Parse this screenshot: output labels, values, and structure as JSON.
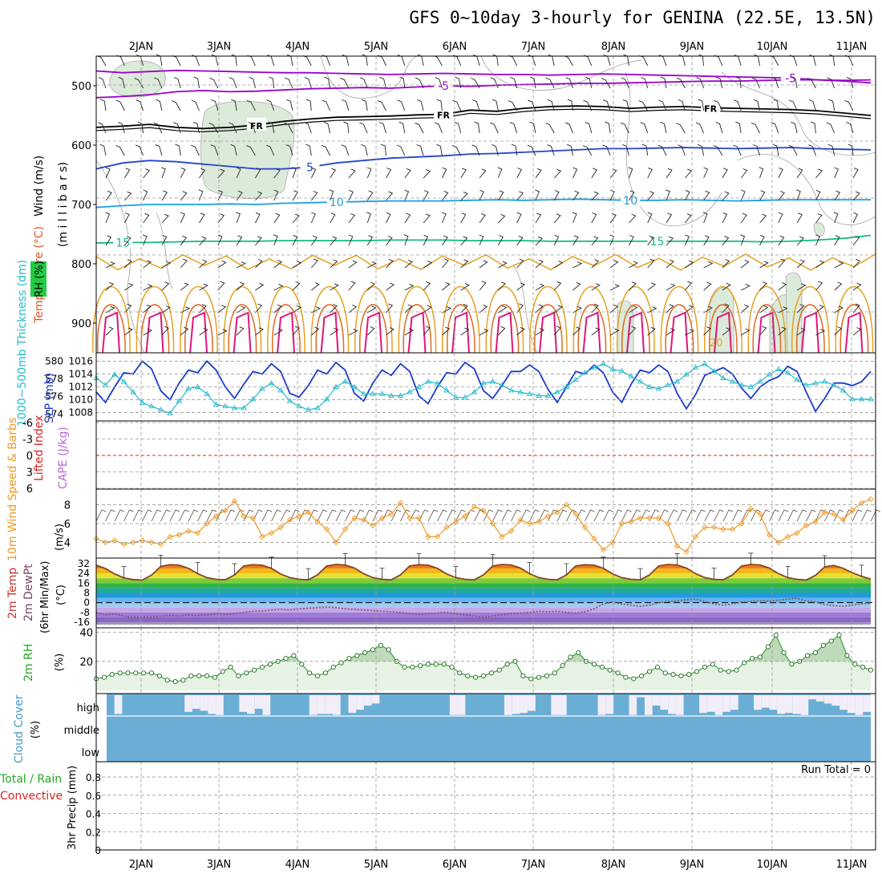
{
  "title": "GFS 0~10day 3-hourly for GENINA (22.5E, 13.5N)",
  "colors": {
    "purple": "#9900cc",
    "blue5": "#2244cc",
    "cyan10": "#1a9ee6",
    "green15": "#11bb88",
    "orange20": "#e8a020",
    "orange25": "#dd6a20",
    "pink30": "#e0157a",
    "rh_fill": "#dcebd9",
    "slp": "#1a3acc",
    "thick": "#22bbcc",
    "wind10m": "#ee9922",
    "temp_line": "#884422",
    "dew_line": "#885566",
    "rh2m": "#33aa33",
    "cloud": "#6aaed6",
    "cloud_gap": "#f2eef8",
    "red": "#dd2222"
  },
  "chart_data": [
    {
      "panel": "upper-air",
      "type": "contour",
      "x_dates": [
        "2JAN",
        "3JAN",
        "4JAN",
        "5JAN",
        "6JAN",
        "7JAN",
        "8JAN",
        "9JAN",
        "10JAN",
        "11JAN"
      ],
      "ylabel_parts": [
        "Wind (m/s)",
        "Temperature (°C)",
        "RH (%)",
        "(m i l l i b a r s)"
      ],
      "yticks": [
        "500",
        "600",
        "700",
        "800",
        "900"
      ],
      "ylim": [
        950,
        450
      ],
      "contours": [
        {
          "label": "-5",
          "level": -5,
          "color": "purple",
          "p": [
            475,
            478,
            476,
            474,
            475,
            476,
            477,
            478,
            478,
            479,
            480,
            481,
            480,
            479,
            480,
            481,
            481,
            482,
            481,
            480,
            481,
            482,
            483,
            484,
            485,
            486,
            487,
            490,
            492,
            495
          ]
        },
        {
          "label": "-5",
          "level": -5,
          "color": "purple",
          "p": [
            520,
            518,
            515,
            510,
            508,
            510,
            509,
            507,
            505,
            504,
            503,
            504,
            502,
            500,
            501,
            499,
            498,
            497,
            496,
            496,
            495,
            494,
            493,
            492,
            492,
            491,
            490,
            490,
            491,
            490
          ]
        },
        {
          "label": "FR",
          "level": 0,
          "color": "black",
          "p": [
            570,
            568,
            565,
            570,
            572,
            570,
            566,
            560,
            556,
            553,
            552,
            551,
            549,
            548,
            541,
            543,
            538,
            535,
            534,
            535,
            538,
            536,
            535,
            537,
            538,
            539,
            540,
            542,
            546,
            550
          ]
        },
        {
          "label": "5",
          "level": 5,
          "color": "blue5",
          "p": [
            640,
            630,
            626,
            628,
            632,
            636,
            640,
            640,
            637,
            630,
            626,
            622,
            620,
            618,
            615,
            614,
            612,
            610,
            608,
            606,
            606,
            605,
            604,
            605,
            606,
            605,
            604,
            606,
            607,
            608
          ]
        },
        {
          "label": "10",
          "level": 10,
          "color": "cyan10",
          "p": [
            705,
            702,
            700,
            700,
            700,
            699,
            700,
            698,
            697,
            696,
            695,
            694,
            694,
            694,
            693,
            692,
            693,
            692,
            691,
            692,
            693,
            693,
            692,
            693,
            694,
            693,
            692,
            692,
            692,
            692
          ]
        },
        {
          "label": "15",
          "level": 15,
          "color": "green15",
          "p": [
            765,
            764,
            764,
            763,
            762,
            762,
            762,
            761,
            761,
            761,
            761,
            760,
            760,
            760,
            761,
            761,
            761,
            762,
            762,
            762,
            762,
            762,
            762,
            762,
            762,
            763,
            762,
            760,
            757,
            752
          ]
        }
      ]
    },
    {
      "panel": "slp-thickness",
      "type": "line",
      "ylabel_left": "1000~500mb Thickness (dm)",
      "ylabel_right": "SLP (mb)",
      "yticks_left": [
        "574",
        "576",
        "578",
        "580"
      ],
      "yticks_right": [
        "1008",
        "1010",
        "1012",
        "1014",
        "1016"
      ],
      "ylim_left": [
        573.5,
        580.5
      ],
      "ylim_right": [
        1007.2,
        1016.8
      ],
      "series": [
        {
          "name": "SLP (mb)",
          "axis": "right",
          "color": "slp",
          "values": [
            1011.2,
            1009.6,
            1012.0,
            1014.2,
            1014.0,
            1016.0,
            1014.8,
            1011.4,
            1010.0,
            1012.6,
            1014.6,
            1014.2,
            1016.0,
            1014.6,
            1012.0,
            1010.2,
            1012.4,
            1014.4,
            1014.0,
            1015.6,
            1014.4,
            1011.0,
            1010.4,
            1012.2,
            1014.6,
            1014.0,
            1015.8,
            1014.6,
            1011.0,
            1009.8,
            1012.6,
            1014.6,
            1013.8,
            1015.6,
            1014.4,
            1010.6,
            1009.4,
            1012.0,
            1014.2,
            1014.0,
            1015.8,
            1014.8,
            1011.4,
            1010.2,
            1012.2,
            1014.4,
            1014.4,
            1015.4,
            1014.4,
            1011.6,
            1009.6,
            1012.0,
            1014.4,
            1014.0,
            1015.4,
            1014.2,
            1011.2,
            1009.6,
            1012.4,
            1014.6,
            1014.2,
            1015.4,
            1014.4,
            1011.0,
            1008.6,
            1010.8,
            1013.8,
            1014.4,
            1015.0,
            1014.0,
            1011.8,
            1010.2,
            1012.0,
            1013.0,
            1013.6,
            1015.2,
            1014.4,
            1011.2,
            1008.2,
            1010.2,
            1012.6,
            1012.6,
            1012.2,
            1012.8,
            1014.4
          ]
        },
        {
          "name": "Thickness (dm)",
          "axis": "left",
          "color": "thick",
          "values": [
            578.0,
            577.2,
            578.4,
            577.6,
            576.4,
            575.2,
            574.8,
            574.4,
            574.0,
            575.4,
            576.8,
            577.0,
            576.2,
            575.0,
            574.8,
            574.6,
            574.6,
            575.6,
            576.8,
            577.4,
            576.6,
            575.4,
            574.8,
            574.4,
            574.6,
            575.6,
            577.0,
            577.6,
            577.0,
            576.2,
            576.2,
            576.2,
            576.0,
            576.0,
            576.4,
            577.0,
            577.6,
            577.4,
            576.6,
            575.8,
            575.8,
            576.4,
            577.4,
            577.6,
            577.2,
            576.6,
            576.4,
            576.2,
            576.0,
            576.0,
            576.4,
            577.0,
            577.8,
            578.6,
            579.2,
            579.6,
            579.0,
            578.8,
            578.2,
            577.6,
            577.0,
            576.8,
            577.2,
            577.6,
            578.4,
            579.2,
            579.6,
            578.8,
            578.0,
            577.6,
            577.2,
            577.0,
            577.6,
            578.4,
            579.0,
            578.6,
            577.8,
            577.2,
            577.4,
            577.6,
            577.2,
            576.6,
            575.6,
            575.6,
            575.6
          ]
        }
      ]
    },
    {
      "panel": "stability",
      "type": "line",
      "ylabel_left": "Lifted Index",
      "ylabel_right": "CAPE (J/kg)",
      "yticks": [
        "-6",
        "-3",
        "0",
        "3",
        "6"
      ],
      "ylim": [
        -6,
        6
      ],
      "series": []
    },
    {
      "panel": "wind10m",
      "type": "line",
      "ylabel": "10m Wind Speed & Barbs",
      "yunit": "(m/s)",
      "yticks": [
        "4",
        "6",
        "8"
      ],
      "ylim": [
        2.5,
        9.5
      ],
      "series": [
        {
          "name": "10m Wind Speed",
          "color": "wind10m",
          "values": [
            4.4,
            4.0,
            4.2,
            3.8,
            4.0,
            4.2,
            4.0,
            3.8,
            4.6,
            4.8,
            5.2,
            5.0,
            6.0,
            6.8,
            7.4,
            8.4,
            6.8,
            6.6,
            4.6,
            5.0,
            5.6,
            6.4,
            6.8,
            7.2,
            6.2,
            5.4,
            4.0,
            5.4,
            6.6,
            6.4,
            5.8,
            6.6,
            7.0,
            8.2,
            6.6,
            6.6,
            4.6,
            4.6,
            5.6,
            6.2,
            6.8,
            7.8,
            7.4,
            6.0,
            4.6,
            5.2,
            6.4,
            6.0,
            6.2,
            6.8,
            7.2,
            8.0,
            7.0,
            5.6,
            4.4,
            3.2,
            4.0,
            6.0,
            6.2,
            6.6,
            6.6,
            6.6,
            6.0,
            3.6,
            3.0,
            4.6,
            5.6,
            5.6,
            5.4,
            5.4,
            6.0,
            7.6,
            7.0,
            4.8,
            4.0,
            4.6,
            5.0,
            5.8,
            6.2,
            7.2,
            7.0,
            6.4,
            7.4,
            8.2,
            8.6
          ]
        }
      ]
    },
    {
      "panel": "temperature",
      "type": "area",
      "ylabel_parts": [
        "2m Temp",
        "2m DewPt",
        "(6hr Min/Max)"
      ],
      "yunit": "(°C)",
      "yticks": [
        "-16",
        "-8",
        "0",
        "8",
        "16",
        "24",
        "32"
      ],
      "ylim": [
        -18,
        34
      ],
      "series": [
        {
          "name": "2m Temp",
          "color": "temp_line",
          "values": [
            30.8,
            28.0,
            23.6,
            20.4,
            19.0,
            18.6,
            22.6,
            29.8,
            31.2,
            30.8,
            28.2,
            23.8,
            20.6,
            19.2,
            18.8,
            22.8,
            30.2,
            31.2,
            30.8,
            28.2,
            23.6,
            20.6,
            19.2,
            18.8,
            22.8,
            30.2,
            31.4,
            31.0,
            28.4,
            23.8,
            20.6,
            19.2,
            18.8,
            22.8,
            30.2,
            31.2,
            30.8,
            28.2,
            23.6,
            20.6,
            19.2,
            18.8,
            22.8,
            30.2,
            31.4,
            31.0,
            28.4,
            23.8,
            20.6,
            19.2,
            18.8,
            22.8,
            30.2,
            31.2,
            30.8,
            28.2,
            23.6,
            20.6,
            19.2,
            18.8,
            22.8,
            30.2,
            31.4,
            31.0,
            28.4,
            23.8,
            20.6,
            19.2,
            18.8,
            22.8,
            30.2,
            31.4,
            31.0,
            28.4,
            23.8,
            20.6,
            19.2,
            18.6,
            22.4,
            29.4,
            30.6,
            28.2,
            24.6,
            21.6,
            19.4
          ]
        },
        {
          "name": "2m DewPt",
          "color": "dew_line",
          "values": [
            -8.0,
            -10.0,
            -9.0,
            -11.0,
            -12.0,
            -11.5,
            -12.0,
            -11.0,
            -10.5,
            -11.0,
            -10.0,
            -10.5,
            -10.0,
            -9.0,
            -9.5,
            -9.0,
            -8.0,
            -7.0,
            -7.0,
            -6.0,
            -5.5,
            -6.0,
            -5.0,
            -4.5,
            -4.0,
            -3.5,
            -4.0,
            -5.0,
            -5.5,
            -6.0,
            -6.5,
            -7.0,
            -7.5,
            -8.0,
            -9.0,
            -9.5,
            -9.0,
            -8.5,
            -8.0,
            -9.0,
            -10.0,
            -11.0,
            -12.0,
            -11.0,
            -10.0,
            -9.0,
            -8.5,
            -8.0,
            -7.0,
            -7.5,
            -7.0,
            -8.0,
            -8.5,
            -7.5,
            -5.0,
            -1.0,
            0.5,
            -1.0,
            -2.0,
            -3.0,
            -2.0,
            0.0,
            1.0,
            1.5,
            2.5,
            3.0,
            1.0,
            -1.0,
            -2.0,
            -1.0,
            0.5,
            1.0,
            1.5,
            1.5,
            2.0,
            3.0,
            3.5,
            1.5,
            0.5,
            -1.5,
            -2.5,
            -3.0,
            -2.0,
            -1.0,
            -0.5
          ]
        }
      ]
    },
    {
      "panel": "rh2m",
      "type": "area",
      "ylabel": "2m RH",
      "yunit": "(%)",
      "yticks": [
        "20",
        "40"
      ],
      "ylim": [
        0,
        42
      ],
      "series": [
        {
          "name": "2m RH",
          "color": "rh2m",
          "values": [
            8,
            9,
            11,
            12,
            12,
            12,
            12,
            12,
            10,
            7,
            6,
            7,
            10,
            10,
            10,
            9,
            13,
            16,
            10,
            12,
            14,
            16,
            18,
            20,
            22,
            24,
            18,
            12,
            10,
            12,
            16,
            19,
            22,
            24,
            26,
            28,
            31,
            28,
            20,
            16,
            16,
            17,
            18,
            18,
            18,
            16,
            12,
            10,
            9,
            10,
            12,
            14,
            18,
            20,
            10,
            8,
            9,
            10,
            12,
            17,
            23,
            26,
            20,
            18,
            16,
            14,
            12,
            9,
            8,
            10,
            13,
            16,
            12,
            11,
            10,
            11,
            13,
            16,
            18,
            14,
            13,
            14,
            19,
            22,
            23,
            30,
            38,
            26,
            18,
            20,
            24,
            26,
            31,
            34,
            38,
            24,
            18,
            16,
            14
          ]
        }
      ]
    },
    {
      "panel": "cloud",
      "type": "bar",
      "ylabel": "Cloud Cover",
      "yunit": "(%)",
      "yticks": [
        "high",
        "middle",
        "low"
      ],
      "series": [
        {
          "name": "high cloud",
          "color": "cloud_gap",
          "values": [
            0,
            0.1,
            0,
            0,
            0,
            0,
            0,
            0,
            0,
            0,
            0.2,
            0.35,
            0.25,
            0.1,
            0.05,
            0,
            0,
            0.2,
            0.1,
            0.35,
            0.05,
            0,
            0,
            0,
            0,
            0,
            0.05,
            0.1,
            0.1,
            0.05,
            0,
            0.15,
            0.3,
            0.5,
            0.6,
            0,
            0,
            0,
            0,
            0,
            0,
            0,
            0,
            0,
            0.05,
            0.05,
            0,
            0,
            0,
            0,
            0,
            0.05,
            0.1,
            0.15,
            0.25,
            0,
            0,
            0.05,
            0.05,
            0,
            0,
            0,
            0,
            0.05,
            0.1,
            0,
            0,
            0.05,
            0.9,
            0.05,
            0.5,
            0.3,
            0.1,
            0.05,
            0,
            0,
            0.15,
            0.2,
            0.05,
            0.2,
            0.3,
            0,
            0,
            0.3,
            0.4,
            0.3,
            0.1,
            0.15,
            0.1,
            0.05,
            0.8,
            0.7,
            0.6,
            0.5,
            0.3,
            0.15,
            0.05,
            0.2
          ]
        }
      ]
    },
    {
      "panel": "precip",
      "type": "bar",
      "ylabel_parts": [
        "Total / Rain",
        "Convective",
        "3hr Precip (mm)"
      ],
      "yticks": [
        "0",
        "0.2",
        "0.4",
        "0.6",
        "0.8"
      ],
      "ylim": [
        0,
        0.95
      ],
      "run_total": "Run Total = 0",
      "series": []
    }
  ]
}
